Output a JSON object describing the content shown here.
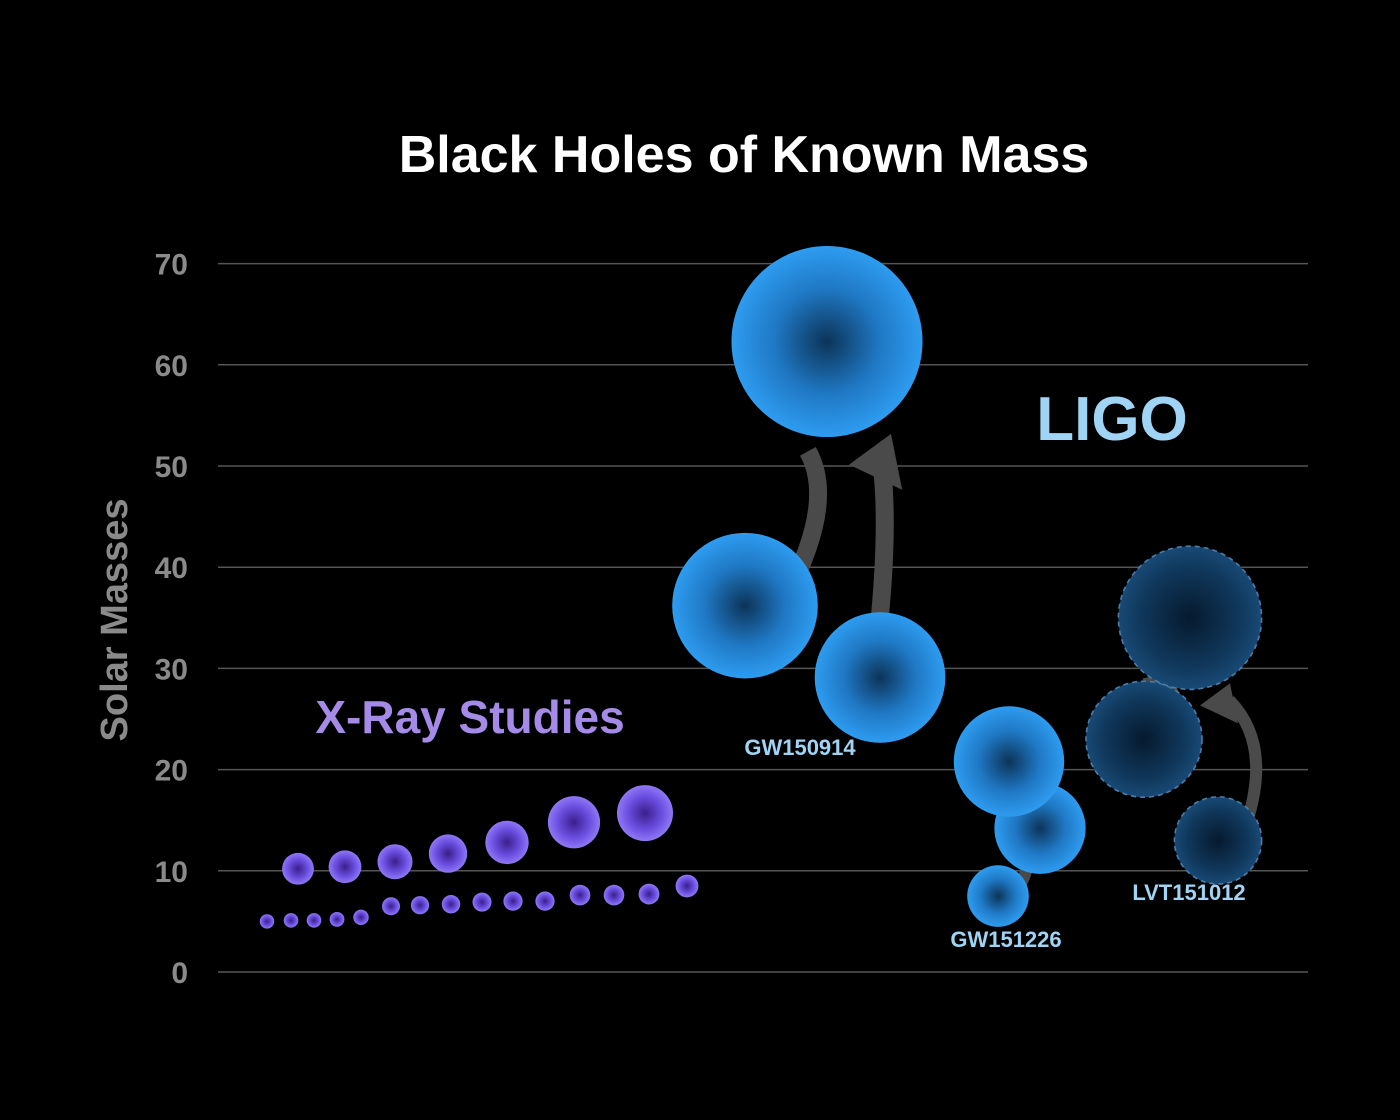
{
  "chart_data": {
    "type": "scatter",
    "title": "Black Holes of Known Mass",
    "ylabel": "Solar Masses",
    "ylim": [
      0,
      70
    ],
    "yticks": [
      0,
      10,
      20,
      30,
      40,
      50,
      60,
      70
    ],
    "grid": true,
    "annotations": {
      "xray_label": "X-Ray Studies",
      "ligo_label": "LIGO"
    },
    "colors": {
      "xray": "#8a6cf0",
      "ligo": "#2a8ee0",
      "ligo_candidate": "#153d66",
      "arrow": "#4a4a4a",
      "grid": "#555555",
      "axis_text": "#8a8a8a",
      "title": "#ffffff",
      "xray_text": "#a58be8",
      "ligo_text": "#9fd4f5"
    },
    "series": [
      {
        "name": "X-Ray Studies",
        "values": [
          5,
          5.1,
          5.1,
          5.2,
          5.4,
          6.5,
          6.6,
          6.7,
          6.9,
          7.0,
          7.0,
          7.6,
          7.6,
          7.7,
          8.5,
          10.2,
          10.4,
          10.9,
          11.7,
          12.8,
          14.8,
          15.7
        ]
      },
      {
        "name": "GW150914",
        "values": [
          36.2,
          29.1,
          62.3
        ]
      },
      {
        "name": "GW151226",
        "values": [
          7.5,
          14.2,
          20.8
        ]
      },
      {
        "name": "LVT151012",
        "values": [
          13.0,
          23.0,
          35.0
        ]
      }
    ]
  }
}
